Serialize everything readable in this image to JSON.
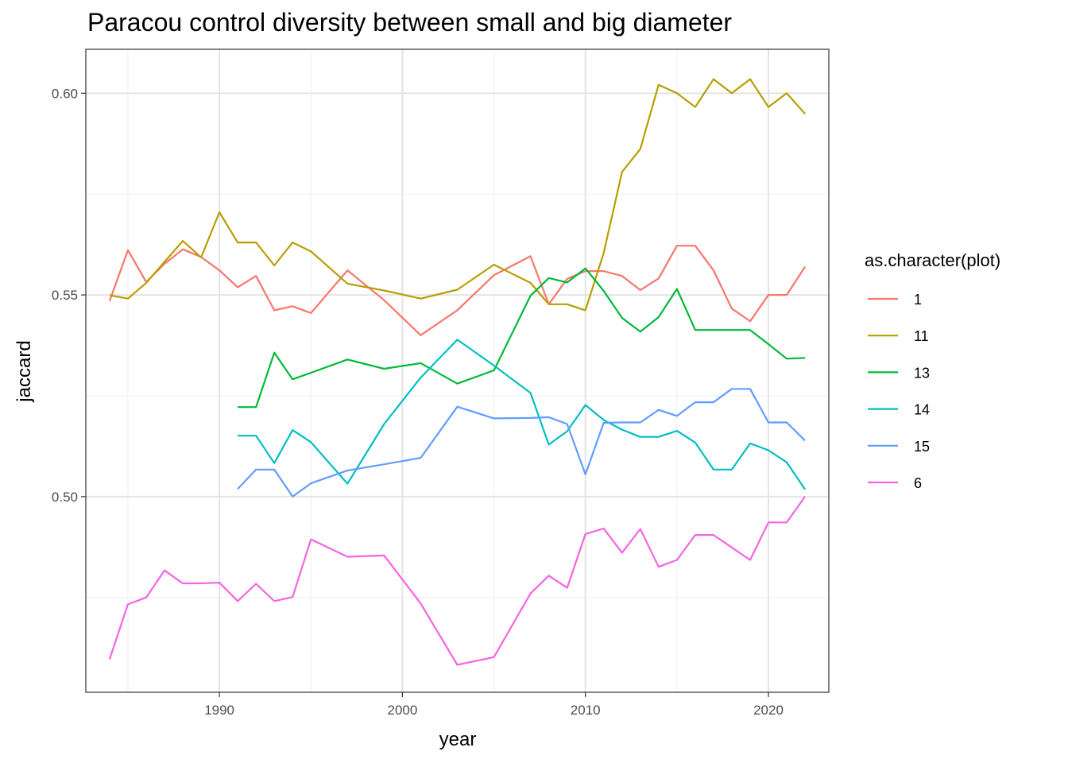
{
  "chart_data": {
    "type": "line",
    "title": "Paracou control diversity between small and big diameter",
    "xlabel": "year",
    "ylabel": "jaccard",
    "xlim": [
      1982.7,
      2023.3
    ],
    "ylim": [
      0.4515,
      0.6109
    ],
    "x_ticks": [
      1990,
      2000,
      2010,
      2020
    ],
    "x_tick_labels": [
      "1990",
      "2000",
      "2010",
      "2020"
    ],
    "y_ticks": [
      0.5,
      0.55,
      0.6
    ],
    "y_tick_labels": [
      "0.50",
      "0.55",
      "0.60"
    ],
    "grid": true,
    "legend": {
      "title": "as.character(plot)",
      "placement": "right"
    },
    "series": [
      {
        "name": "1",
        "color": "#F8766D",
        "x": [
          1984,
          1985,
          1986,
          1987,
          1988,
          1989,
          1990,
          1991,
          1992,
          1993,
          1994,
          1995,
          1997,
          1999,
          2001,
          2003,
          2005,
          2007,
          2008,
          2009,
          2010,
          2011,
          2012,
          2013,
          2014,
          2015,
          2016,
          2017,
          2018,
          2019,
          2020,
          2021,
          2022
        ],
        "y": [
          0.5485,
          0.5611,
          0.5532,
          0.5577,
          0.5613,
          0.5594,
          0.5561,
          0.5519,
          0.5547,
          0.5462,
          0.5472,
          0.5455,
          0.5561,
          0.5487,
          0.54,
          0.5462,
          0.5549,
          0.5596,
          0.5477,
          0.554,
          0.5559,
          0.5559,
          0.5547,
          0.5512,
          0.5541,
          0.5622,
          0.5622,
          0.5561,
          0.5466,
          0.5435,
          0.55,
          0.55,
          0.557
        ]
      },
      {
        "name": "11",
        "color": "#B79F00",
        "x": [
          1984,
          1985,
          1986,
          1987,
          1988,
          1989,
          1990,
          1991,
          1992,
          1993,
          1994,
          1995,
          1997,
          1999,
          2001,
          2003,
          2005,
          2007,
          2008,
          2009,
          2010,
          2011,
          2012,
          2013,
          2014,
          2015,
          2016,
          2017,
          2018,
          2019,
          2020,
          2021,
          2022
        ],
        "y": [
          0.5499,
          0.5491,
          0.553,
          0.5582,
          0.5634,
          0.5593,
          0.5705,
          0.563,
          0.563,
          0.5573,
          0.563,
          0.5608,
          0.5528,
          0.5511,
          0.5491,
          0.5513,
          0.5575,
          0.553,
          0.5477,
          0.5477,
          0.5462,
          0.5604,
          0.5805,
          0.5862,
          0.6021,
          0.6,
          0.5966,
          0.6035,
          0.6,
          0.6035,
          0.5966,
          0.6,
          0.5949
        ]
      },
      {
        "name": "13",
        "color": "#00BA38",
        "x": [
          1991,
          1992,
          1993,
          1994,
          1995,
          1997,
          1999,
          2001,
          2003,
          2005,
          2007,
          2008,
          2009,
          2010,
          2011,
          2012,
          2013,
          2014,
          2015,
          2016,
          2017,
          2018,
          2019,
          2020,
          2021,
          2022
        ],
        "y": [
          0.5222,
          0.5222,
          0.5357,
          0.5291,
          0.5307,
          0.534,
          0.5317,
          0.5331,
          0.528,
          0.5313,
          0.5498,
          0.5542,
          0.5531,
          0.5566,
          0.551,
          0.5443,
          0.5409,
          0.5445,
          0.5515,
          0.5413,
          0.5413,
          0.5413,
          0.5413,
          0.5378,
          0.5342,
          0.5344
        ]
      },
      {
        "name": "14",
        "color": "#00BFC4",
        "x": [
          1991,
          1992,
          1993,
          1994,
          1995,
          1997,
          1999,
          2001,
          2003,
          2005,
          2007,
          2008,
          2009,
          2010,
          2011,
          2012,
          2013,
          2014,
          2015,
          2016,
          2017,
          2018,
          2019,
          2020,
          2021,
          2022
        ],
        "y": [
          0.5151,
          0.5151,
          0.5083,
          0.5165,
          0.5135,
          0.5032,
          0.518,
          0.5295,
          0.5389,
          0.5325,
          0.5257,
          0.5129,
          0.5162,
          0.5227,
          0.519,
          0.5166,
          0.5148,
          0.5148,
          0.5163,
          0.5134,
          0.5067,
          0.5067,
          0.5132,
          0.5115,
          0.5085,
          0.5018
        ]
      },
      {
        "name": "15",
        "color": "#619CFF",
        "x": [
          1991,
          1992,
          1993,
          1994,
          1995,
          1997,
          1999,
          2001,
          2003,
          2005,
          2007,
          2008,
          2009,
          2010,
          2011,
          2012,
          2013,
          2014,
          2015,
          2016,
          2017,
          2018,
          2019,
          2020,
          2021,
          2022
        ],
        "y": [
          0.5019,
          0.5067,
          0.5067,
          0.5,
          0.5033,
          0.5065,
          0.508,
          0.5096,
          0.5223,
          0.5194,
          0.5195,
          0.5197,
          0.518,
          0.5055,
          0.5183,
          0.5184,
          0.5184,
          0.5215,
          0.52,
          0.5234,
          0.5234,
          0.5267,
          0.5267,
          0.5184,
          0.5184,
          0.5139
        ]
      },
      {
        "name": "6",
        "color": "#F564E3",
        "x": [
          1984,
          1985,
          1986,
          1987,
          1988,
          1989,
          1990,
          1991,
          1992,
          1993,
          1994,
          1995,
          1997,
          1999,
          2001,
          2003,
          2005,
          2007,
          2008,
          2009,
          2010,
          2011,
          2012,
          2013,
          2014,
          2015,
          2016,
          2017,
          2018,
          2019,
          2020,
          2021,
          2022
        ],
        "y": [
          0.4597,
          0.4733,
          0.475,
          0.4817,
          0.4785,
          0.4785,
          0.4787,
          0.4741,
          0.4784,
          0.4741,
          0.4751,
          0.4894,
          0.4851,
          0.4854,
          0.4735,
          0.4583,
          0.4602,
          0.476,
          0.4804,
          0.4774,
          0.4907,
          0.4921,
          0.4861,
          0.492,
          0.4826,
          0.4843,
          0.4905,
          0.4905,
          0.4874,
          0.4843,
          0.4936,
          0.4936,
          0.5
        ]
      }
    ]
  }
}
